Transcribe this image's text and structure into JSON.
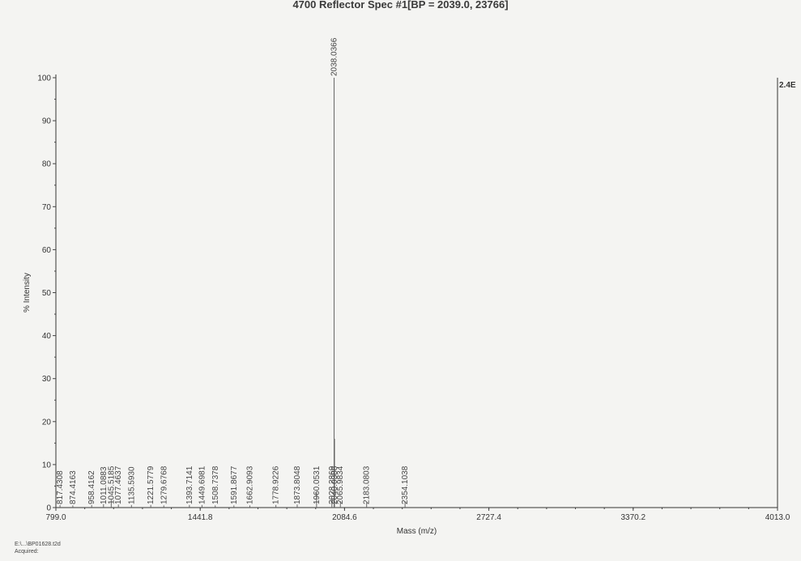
{
  "chart_data": {
    "type": "line",
    "title": "4700 Reflector Spec #1[BP = 2039.0, 23766]",
    "xlabel": "Mass (m/z)",
    "ylabel": "% Intensity",
    "xlim": [
      799.0,
      4013.0
    ],
    "ylim": [
      0,
      100
    ],
    "x_ticks": [
      "799.0",
      "1441.8",
      "2084.6",
      "2727.4",
      "3370.2",
      "4013.0"
    ],
    "x_tick_values": [
      799.0,
      1441.8,
      2084.6,
      2727.4,
      3370.2,
      4013.0
    ],
    "y_ticks": [
      0,
      10,
      20,
      30,
      40,
      50,
      60,
      70,
      80,
      90,
      100
    ],
    "corner_label": "2.4E",
    "grid": false,
    "peaks": [
      {
        "mass": 817.4308,
        "label": "817.4308",
        "intensity": 0.6
      },
      {
        "mass": 874.4163,
        "label": "874.4163",
        "intensity": 0.5
      },
      {
        "mass": 958.4162,
        "label": "958.4162",
        "intensity": 0.6
      },
      {
        "mass": 1011.0883,
        "label": "1011.0883",
        "intensity": 0.8
      },
      {
        "mass": 1045.5185,
        "label": "1045.5185",
        "intensity": 1.8
      },
      {
        "mass": 1077.4637,
        "label": "1077.4637",
        "intensity": 0.7
      },
      {
        "mass": 1135.593,
        "label": "1135.5930",
        "intensity": 0.6
      },
      {
        "mass": 1221.5779,
        "label": "1221.5779",
        "intensity": 0.6
      },
      {
        "mass": 1279.6768,
        "label": "1279.6768",
        "intensity": 0.5
      },
      {
        "mass": 1393.7141,
        "label": "1393.7141",
        "intensity": 0.6
      },
      {
        "mass": 1449.6981,
        "label": "1449.6981",
        "intensity": 0.6
      },
      {
        "mass": 1508.7378,
        "label": "1508.7378",
        "intensity": 0.5
      },
      {
        "mass": 1591.8677,
        "label": "1591.8677",
        "intensity": 0.5
      },
      {
        "mass": 1662.9093,
        "label": "1662.9093",
        "intensity": 0.5
      },
      {
        "mass": 1778.9226,
        "label": "1778.9226",
        "intensity": 0.6
      },
      {
        "mass": 1873.8048,
        "label": "1873.8048",
        "intensity": 0.7
      },
      {
        "mass": 1960.0531,
        "label": "1960.0531",
        "intensity": 3.5
      },
      {
        "mass": 2028.2869,
        "label": "2028.2869",
        "intensity": 2.0
      },
      {
        "mass": 2038.0366,
        "label": "2038.0366",
        "intensity": 100
      },
      {
        "mass": 2040.0,
        "label": "2040.0388",
        "intensity": 16.0
      },
      {
        "mass": 2065.9834,
        "label": "2065.9834",
        "intensity": 1.5
      },
      {
        "mass": 2183.0803,
        "label": "2183.0803",
        "intensity": 1.2
      },
      {
        "mass": 2354.1038,
        "label": "2354.1038",
        "intensity": 1.5
      }
    ]
  },
  "footer": {
    "file": "E:\\...\\BP01628.t2d",
    "acquired": "Acquired:"
  }
}
